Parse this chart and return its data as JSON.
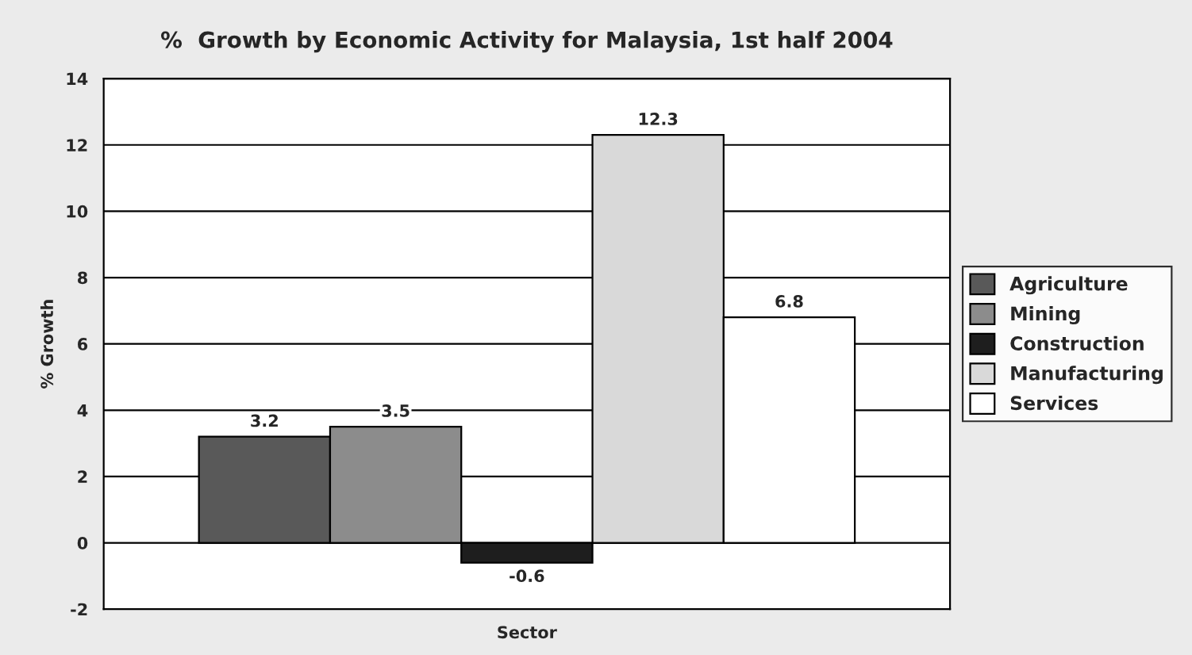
{
  "chart_data": {
    "type": "bar",
    "title": "%  Growth by Economic Activity for Malaysia, 1st half 2004",
    "xlabel": "Sector",
    "ylabel": "% Growth",
    "categories": [
      null
    ],
    "series": [
      {
        "name": "Agriculture",
        "color": "#595959",
        "values": [
          3.2
        ]
      },
      {
        "name": "Mining",
        "color": "#8c8c8c",
        "values": [
          3.5
        ]
      },
      {
        "name": "Construction",
        "color": "#1e1e1e",
        "values": [
          -0.6
        ]
      },
      {
        "name": "Manufacturing",
        "color": "#d9d9d9",
        "values": [
          12.3
        ]
      },
      {
        "name": "Services",
        "color": "#ffffff",
        "values": [
          6.8
        ]
      }
    ],
    "ylim": [
      -2,
      14
    ],
    "yticks": [
      -2,
      0,
      2,
      4,
      6,
      8,
      10,
      12,
      14
    ],
    "grid": "y",
    "legend": "right",
    "data_labels": true
  }
}
